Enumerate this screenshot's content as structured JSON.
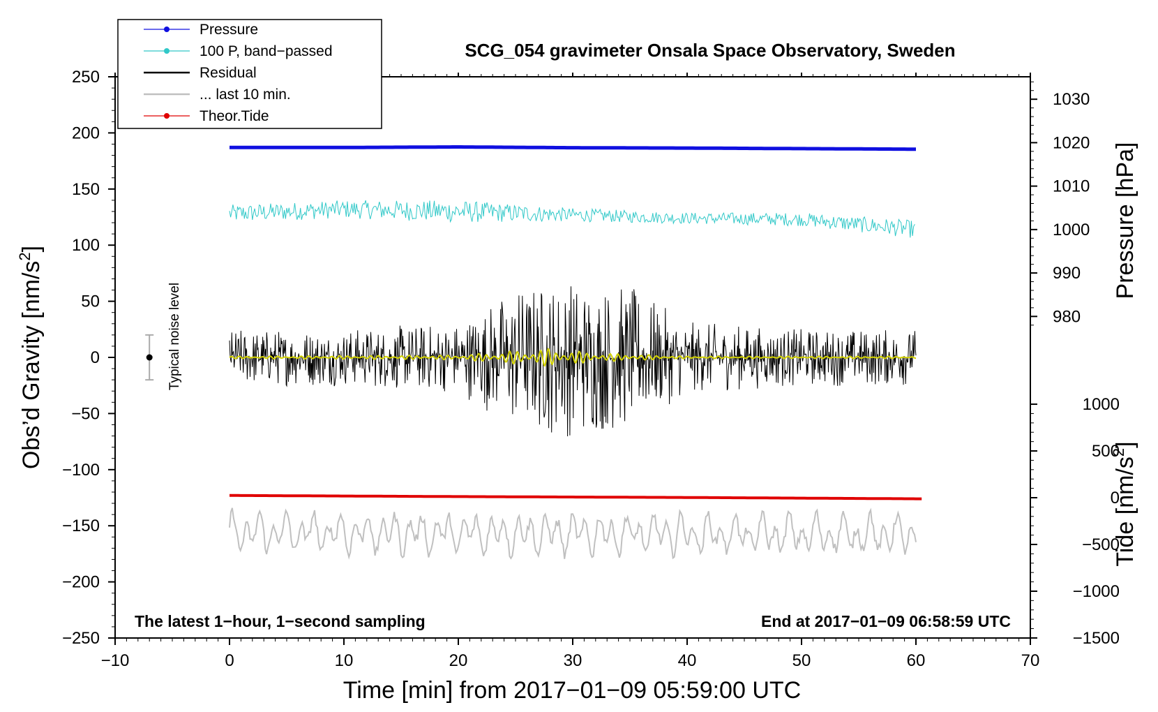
{
  "chart_data": {
    "type": "line",
    "title": "SCG_054 gravimeter Onsala Space Observatory, Sweden",
    "xlabel": "Time [min] from 2017−01−09 05:59:00 UTC",
    "ylabel_main": "Obs’d Gravity [nm/s",
    "ylabel_sup": "2",
    "ylabel_close": "]",
    "ylabel_pressure": "Pressure [hPa]",
    "ylabel_tide": "Tide [nm/s",
    "ylabel_tide_sup": "2",
    "ylabel_tide_close": "]",
    "xlim": [
      -10,
      70
    ],
    "ylim": [
      -250,
      250
    ],
    "x_ticks": [
      -10,
      0,
      10,
      20,
      30,
      40,
      50,
      60,
      70
    ],
    "x_tick_labels": [
      "−10",
      "0",
      "10",
      "20",
      "30",
      "40",
      "50",
      "60",
      "70"
    ],
    "y_ticks": [
      250,
      200,
      150,
      100,
      50,
      0,
      -50,
      -100,
      -150,
      -200,
      -250
    ],
    "y_tick_labels": [
      "250",
      "200",
      "150",
      "100",
      "50",
      "0",
      "−50",
      "−100",
      "−150",
      "−200",
      "−250"
    ],
    "pressure_axis": {
      "ticks": [
        1030,
        1020,
        1010,
        1000,
        990,
        980
      ],
      "tick_labels": [
        "1030",
        "1020",
        "1010",
        "1000",
        "990",
        "980"
      ],
      "gravity_at_1030": 230,
      "gravity_per_hpa": 3.87
    },
    "tide_axis": {
      "ticks": [
        1000,
        500,
        0,
        -500,
        -1000,
        -1500
      ],
      "tick_labels": [
        "1000",
        "500",
        "0",
        "−500",
        "−1000",
        "−1500"
      ],
      "gravity_at_zero": -125,
      "gravity_per_unit": 0.0833
    },
    "legend": [
      {
        "label": "Pressure",
        "color": "#1010e0",
        "marker": true
      },
      {
        "label": "100 P, band−passed",
        "color": "#30c8c8",
        "marker": true
      },
      {
        "label": "Residual",
        "color": "#000000",
        "marker": false
      },
      {
        "label": "... last 10 min.",
        "color": "#c0c0c0",
        "marker": false
      },
      {
        "label": "Theor.Tide",
        "color": "#e00000",
        "marker": true
      }
    ],
    "series": [
      {
        "name": "Pressure",
        "color": "#1010e0",
        "x": [
          0,
          10,
          20,
          30,
          40,
          50,
          60
        ],
        "values": [
          187,
          187,
          187.5,
          186.8,
          186.5,
          186,
          185.5
        ]
      },
      {
        "name": "100 P, band−passed",
        "color": "#30c8c8",
        "x": [
          0,
          10,
          20,
          30,
          40,
          50,
          60
        ],
        "values": [
          128,
          132,
          130,
          127,
          124,
          123,
          114
        ],
        "amplitude": [
          8,
          8,
          10,
          6,
          5,
          6,
          8
        ]
      },
      {
        "name": "Residual",
        "color": "#000000",
        "x": [
          0,
          10,
          20,
          25,
          30,
          35,
          40,
          50,
          60
        ],
        "values": [
          0,
          0,
          0,
          0,
          0,
          0,
          0,
          0,
          0
        ],
        "amplitude": [
          16,
          16,
          20,
          40,
          45,
          40,
          20,
          16,
          16
        ]
      },
      {
        "name": "Residual (smoothed)",
        "color": "#d4d400",
        "x": [
          0,
          20,
          25,
          28,
          32,
          40,
          60
        ],
        "values": [
          0,
          0,
          0,
          0,
          0,
          0,
          0
        ],
        "amplitude": [
          1,
          2,
          6,
          8,
          4,
          1,
          1
        ]
      },
      {
        "name": "... last 10 min.",
        "color": "#c0c0c0",
        "x": [
          0,
          60
        ],
        "values": [
          -156,
          -158
        ],
        "amplitude": [
          16,
          16
        ]
      },
      {
        "name": "Theor.Tide",
        "color": "#e00000",
        "x": [
          0,
          20,
          40,
          60.5
        ],
        "values": [
          -123,
          -124,
          -124.8,
          -126
        ]
      }
    ],
    "noise_level": {
      "label": "Typical noise level",
      "x": -7,
      "center": 0,
      "half_range": 20
    },
    "annotation_left": "The latest 1−hour, 1−second sampling",
    "annotation_right": "End at 2017−01−09 06:58:59 UTC"
  }
}
